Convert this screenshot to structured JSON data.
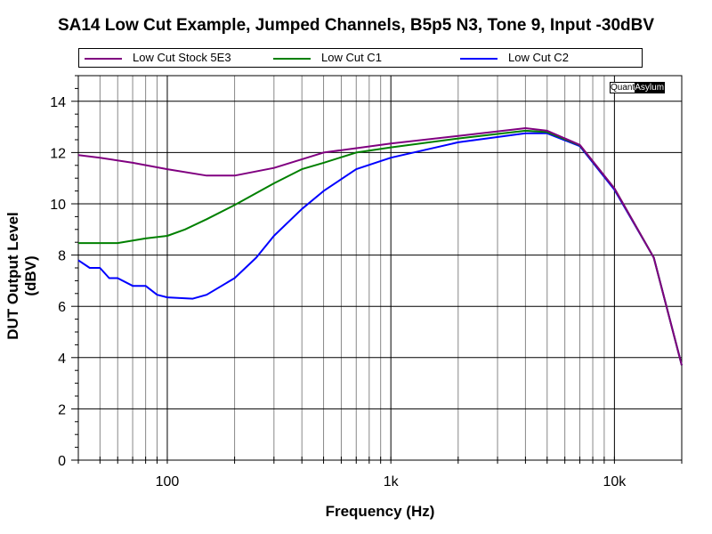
{
  "chart_data": {
    "type": "line",
    "title": "SA14 Low Cut Example, Jumped Channels, B5p5 N3, Tone 9, Input -30dBV",
    "xlabel": "Frequency (Hz)",
    "ylabel": "DUT Output Level (dBV)",
    "xscale": "log",
    "xlim": [
      40,
      20000
    ],
    "ylim": [
      0,
      15
    ],
    "xticks": [
      {
        "v": 100,
        "label": "100"
      },
      {
        "v": 1000,
        "label": "1k"
      },
      {
        "v": 10000,
        "label": "10k"
      }
    ],
    "yticks": [
      0,
      2,
      4,
      6,
      8,
      10,
      12,
      14
    ],
    "grid": true,
    "legend_position": "top",
    "series": [
      {
        "name": "Low Cut Stock 5E3",
        "color": "#800080",
        "x": [
          40,
          50,
          70,
          100,
          150,
          200,
          300,
          500,
          1000,
          2000,
          4000,
          5000,
          7000,
          10000,
          15000,
          20000
        ],
        "y": [
          11.9,
          11.8,
          11.6,
          11.35,
          11.1,
          11.1,
          11.4,
          12.0,
          12.35,
          12.65,
          12.95,
          12.85,
          12.3,
          10.6,
          7.9,
          3.7
        ]
      },
      {
        "name": "Low Cut C1",
        "color": "#008000",
        "x": [
          40,
          60,
          80,
          100,
          120,
          150,
          200,
          300,
          400,
          500,
          700,
          1000,
          2000,
          4000,
          5000,
          7000,
          10000,
          15000,
          20000
        ],
        "y": [
          8.47,
          8.47,
          8.65,
          8.75,
          9.0,
          9.4,
          9.95,
          10.8,
          11.35,
          11.6,
          12.0,
          12.2,
          12.55,
          12.85,
          12.8,
          12.28,
          10.6,
          7.9,
          3.7
        ]
      },
      {
        "name": "Low Cut C2",
        "color": "#0000ff",
        "x": [
          40,
          45,
          50,
          55,
          60,
          70,
          80,
          90,
          100,
          130,
          150,
          200,
          250,
          300,
          400,
          500,
          700,
          1000,
          2000,
          4000,
          5000,
          7000,
          10000,
          15000,
          20000
        ],
        "y": [
          7.8,
          7.5,
          7.5,
          7.1,
          7.1,
          6.8,
          6.8,
          6.45,
          6.35,
          6.3,
          6.45,
          7.1,
          7.9,
          8.75,
          9.8,
          10.5,
          11.35,
          11.8,
          12.4,
          12.75,
          12.75,
          12.25,
          10.55,
          7.9,
          3.7
        ]
      }
    ]
  },
  "logo": {
    "part1": "Quant",
    "part2": "Asylum"
  }
}
